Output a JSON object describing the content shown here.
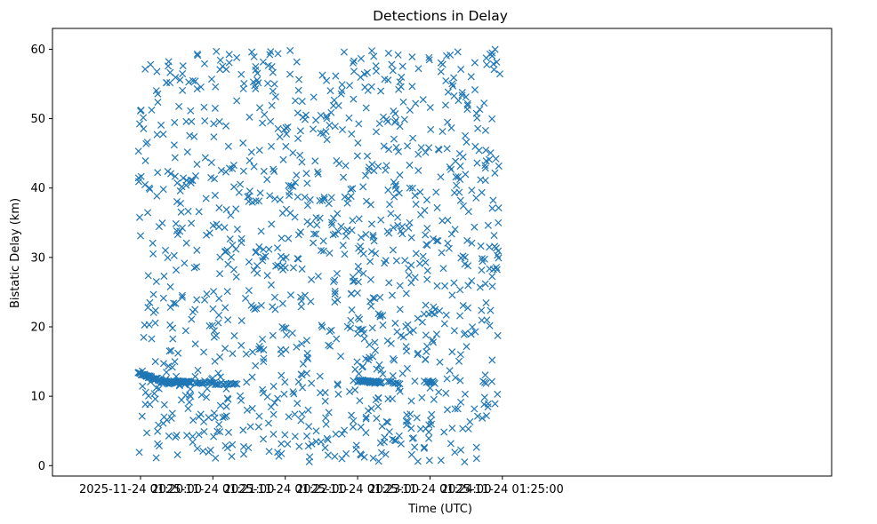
{
  "chart_data": {
    "type": "scatter",
    "title": "Detections in Delay",
    "xlabel": "Time (UTC)",
    "ylabel": "Bistatic Delay (km)",
    "marker": "x",
    "color": "#1f77b4",
    "xlim_seconds": [
      -73,
      573
    ],
    "ylim": [
      -1.5,
      63.0
    ],
    "x_ticks": [
      {
        "seconds": 0,
        "label": "2025-11-24 01:20:00"
      },
      {
        "seconds": 60,
        "label": "2025-11-24 01:21:00"
      },
      {
        "seconds": 120,
        "label": "2025-11-24 01:22:00"
      },
      {
        "seconds": 180,
        "label": "2025-11-24 01:23:00"
      },
      {
        "seconds": 240,
        "label": "2025-11-24 01:24:00"
      },
      {
        "seconds": 300,
        "label": "2025-11-24 01:25:00"
      }
    ],
    "y_ticks": [
      0,
      10,
      20,
      30,
      40,
      50,
      60
    ],
    "x_data_range_seconds": [
      -2,
      298
    ],
    "y_data_range": [
      0.5,
      60
    ],
    "series": [
      {
        "name": "Detections",
        "clutter_count": 1150,
        "clutter_time_range_seconds": [
          -2,
          298
        ],
        "clutter_delay_range_km": [
          0.5,
          60
        ],
        "target_tracks": [
          {
            "start_seconds": -2,
            "end_seconds": 25,
            "delay_start_km": 13.3,
            "delay_end_km": 11.8,
            "count": 55
          },
          {
            "start_seconds": 25,
            "end_seconds": 42,
            "delay_start_km": 12.1,
            "delay_end_km": 12.0,
            "count": 35
          },
          {
            "start_seconds": 45,
            "end_seconds": 80,
            "delay_start_km": 12.0,
            "delay_end_km": 11.7,
            "count": 28
          },
          {
            "start_seconds": 180,
            "end_seconds": 200,
            "delay_start_km": 12.2,
            "delay_end_km": 12.0,
            "count": 38
          },
          {
            "start_seconds": 205,
            "end_seconds": 215,
            "delay_start_km": 12.0,
            "delay_end_km": 11.9,
            "count": 8
          },
          {
            "start_seconds": 237,
            "end_seconds": 244,
            "delay_start_km": 12.1,
            "delay_end_km": 12.0,
            "count": 10
          }
        ]
      }
    ]
  }
}
